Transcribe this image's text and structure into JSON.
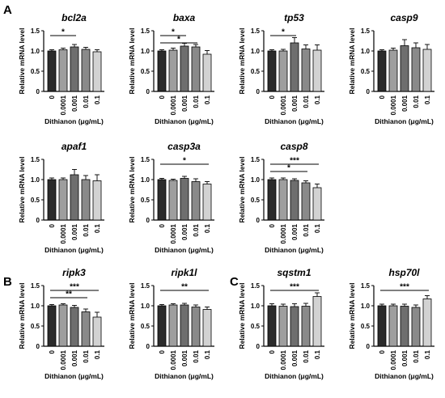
{
  "panel_labels": [
    "A",
    "B",
    "C"
  ],
  "colors": {
    "bars": [
      "#2b2b2b",
      "#9e9e9e",
      "#6e6e6e",
      "#8a8a8a",
      "#d2d2d2"
    ],
    "axis": "#000000"
  },
  "chart_data": [
    {
      "panel": "A",
      "type": "bar",
      "title": "bcl2a",
      "xlabel": "Dithianon (μg/mL)",
      "ylabel": "Relative mRNA level",
      "categories": [
        "0",
        "0.0001",
        "0.001",
        "0.01",
        "0.1"
      ],
      "values": [
        1.0,
        1.03,
        1.1,
        1.04,
        0.98
      ],
      "errors": [
        0.03,
        0.04,
        0.06,
        0.05,
        0.05
      ],
      "ylim": [
        0,
        1.5
      ],
      "yticks": [
        "0",
        "0.5",
        "1.0",
        "1.5"
      ],
      "significance": [
        {
          "from": 0,
          "to": 2,
          "label": "*"
        }
      ]
    },
    {
      "panel": "A",
      "type": "bar",
      "title": "baxa",
      "xlabel": "Dithianon (μg/mL)",
      "ylabel": "Relative mRNA level",
      "categories": [
        "0",
        "0.0001",
        "0.001",
        "0.01",
        "0.1"
      ],
      "values": [
        1.0,
        1.02,
        1.12,
        1.1,
        0.92
      ],
      "errors": [
        0.03,
        0.05,
        0.07,
        0.06,
        0.09
      ],
      "ylim": [
        0,
        1.5
      ],
      "yticks": [
        "0",
        "0.5",
        "1.0",
        "1.5"
      ],
      "significance": [
        {
          "from": 0,
          "to": 2,
          "label": "*"
        },
        {
          "from": 0,
          "to": 3,
          "label": "*"
        }
      ]
    },
    {
      "panel": "A",
      "type": "bar",
      "title": "tp53",
      "xlabel": "Dithianon (μg/mL)",
      "ylabel": "Relative mRNA level",
      "categories": [
        "0",
        "0.0001",
        "0.001",
        "0.01",
        "0.1"
      ],
      "values": [
        1.0,
        1.0,
        1.2,
        1.05,
        1.02
      ],
      "errors": [
        0.03,
        0.04,
        0.13,
        0.1,
        0.13
      ],
      "ylim": [
        0,
        1.5
      ],
      "yticks": [
        "0",
        "0.5",
        "1.0",
        "1.5"
      ],
      "significance": [
        {
          "from": 0,
          "to": 2,
          "label": "*"
        }
      ]
    },
    {
      "panel": "A",
      "type": "bar",
      "title": "casp9",
      "xlabel": "Dithianon (μg/mL)",
      "ylabel": "Relative mRNA level",
      "categories": [
        "0",
        "0.0001",
        "0.001",
        "0.01",
        "0.1"
      ],
      "values": [
        1.0,
        1.02,
        1.13,
        1.08,
        1.04
      ],
      "errors": [
        0.03,
        0.05,
        0.15,
        0.12,
        0.12
      ],
      "ylim": [
        0,
        1.5
      ],
      "yticks": [
        "0",
        "0.5",
        "1.0",
        "1.5"
      ],
      "significance": []
    },
    {
      "panel": "A",
      "type": "bar",
      "title": "apaf1",
      "xlabel": "Dithianon (μg/mL)",
      "ylabel": "Relative mRNA level",
      "categories": [
        "0",
        "0.0001",
        "0.001",
        "0.01",
        "0.1"
      ],
      "values": [
        1.0,
        1.0,
        1.12,
        1.0,
        0.97
      ],
      "errors": [
        0.04,
        0.04,
        0.13,
        0.1,
        0.15
      ],
      "ylim": [
        0,
        1.5
      ],
      "yticks": [
        "0",
        "0.5",
        "1.0",
        "1.5"
      ],
      "significance": []
    },
    {
      "panel": "A",
      "type": "bar",
      "title": "casp3a",
      "xlabel": "Dithianon (μg/mL)",
      "ylabel": "Relative mRNA level",
      "categories": [
        "0",
        "0.0001",
        "0.001",
        "0.01",
        "0.1"
      ],
      "values": [
        1.0,
        0.98,
        1.03,
        0.95,
        0.89
      ],
      "errors": [
        0.03,
        0.03,
        0.05,
        0.07,
        0.06
      ],
      "ylim": [
        0,
        1.5
      ],
      "yticks": [
        "0",
        "0.5",
        "1.0",
        "1.5"
      ],
      "significance": [
        {
          "from": 0,
          "to": 4,
          "label": "*"
        }
      ]
    },
    {
      "panel": "A",
      "type": "bar",
      "title": "casp8",
      "xlabel": "Dithianon (μg/mL)",
      "ylabel": "Relative mRNA level",
      "categories": [
        "0",
        "0.0001",
        "0.001",
        "0.01",
        "0.1"
      ],
      "values": [
        1.0,
        1.0,
        0.98,
        0.92,
        0.8
      ],
      "errors": [
        0.04,
        0.04,
        0.04,
        0.05,
        0.09
      ],
      "ylim": [
        0,
        1.5
      ],
      "yticks": [
        "0",
        "0.5",
        "1.0",
        "1.5"
      ],
      "significance": [
        {
          "from": 0,
          "to": 4,
          "label": "***"
        },
        {
          "from": 0,
          "to": 3,
          "label": "*"
        }
      ]
    },
    {
      "panel": "B",
      "type": "bar",
      "title": "ripk3",
      "xlabel": "Dithianon (μg/mL)",
      "ylabel": "Relative mRNA level",
      "categories": [
        "0",
        "0.0001",
        "0.001",
        "0.01",
        "0.1"
      ],
      "values": [
        1.0,
        1.02,
        0.96,
        0.85,
        0.72
      ],
      "errors": [
        0.03,
        0.03,
        0.05,
        0.07,
        0.12
      ],
      "ylim": [
        0,
        1.5
      ],
      "yticks": [
        "0",
        "0.5",
        "1.0",
        "1.5"
      ],
      "significance": [
        {
          "from": 0,
          "to": 4,
          "label": "***"
        },
        {
          "from": 0,
          "to": 3,
          "label": "**"
        }
      ]
    },
    {
      "panel": "B",
      "type": "bar",
      "title": "ripk1l",
      "xlabel": "Dithianon (μg/mL)",
      "ylabel": "Relative mRNA level",
      "categories": [
        "0",
        "0.0001",
        "0.001",
        "0.01",
        "0.1"
      ],
      "values": [
        1.0,
        1.02,
        1.02,
        0.97,
        0.91
      ],
      "errors": [
        0.03,
        0.03,
        0.04,
        0.05,
        0.06
      ],
      "ylim": [
        0,
        1.5
      ],
      "yticks": [
        "0",
        "0.5",
        "1.0",
        "1.5"
      ],
      "significance": [
        {
          "from": 0,
          "to": 4,
          "label": "**"
        }
      ]
    },
    {
      "panel": "C",
      "type": "bar",
      "title": "sqstm1",
      "xlabel": "Dithianon (μg/mL)",
      "ylabel": "Relative mRNA level",
      "categories": [
        "0",
        "0.0001",
        "0.001",
        "0.01",
        "0.1"
      ],
      "values": [
        1.0,
        0.99,
        0.98,
        0.99,
        1.23
      ],
      "errors": [
        0.05,
        0.05,
        0.07,
        0.07,
        0.09
      ],
      "ylim": [
        0,
        1.5
      ],
      "yticks": [
        "0",
        "0.5",
        "1.0",
        "1.5"
      ],
      "significance": [
        {
          "from": 0,
          "to": 4,
          "label": "***"
        }
      ]
    },
    {
      "panel": "C",
      "type": "bar",
      "title": "hsp70l",
      "xlabel": "Dithianon (μg/mL)",
      "ylabel": "Relative mRNA level",
      "categories": [
        "0",
        "0.0001",
        "0.001",
        "0.01",
        "0.1"
      ],
      "values": [
        1.0,
        1.0,
        0.99,
        0.96,
        1.17
      ],
      "errors": [
        0.04,
        0.04,
        0.05,
        0.06,
        0.08
      ],
      "ylim": [
        0,
        1.5
      ],
      "yticks": [
        "0",
        "0.5",
        "1.0",
        "1.5"
      ],
      "significance": [
        {
          "from": 0,
          "to": 4,
          "label": "***"
        }
      ]
    }
  ]
}
